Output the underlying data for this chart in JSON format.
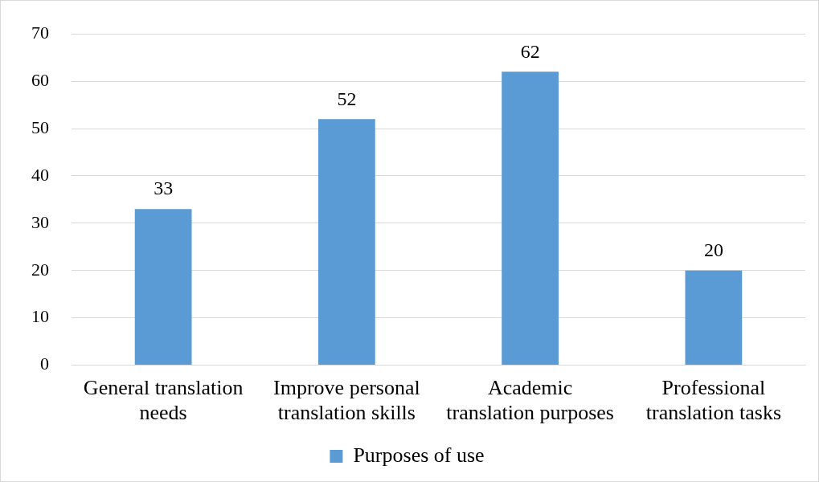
{
  "chart_data": {
    "type": "bar",
    "categories": [
      "General translation needs",
      "Improve personal translation skills",
      "Academic translation purposes",
      "Professional translation tasks"
    ],
    "series": [
      {
        "name": "Purposes of use",
        "color": "#5b9bd5",
        "values": [
          33,
          52,
          62,
          20
        ]
      }
    ],
    "ylim": [
      0,
      70
    ],
    "yticks": [
      0,
      10,
      20,
      30,
      40,
      50,
      60,
      70
    ],
    "grid": "y",
    "legend": "bottom",
    "data_labels": true
  }
}
